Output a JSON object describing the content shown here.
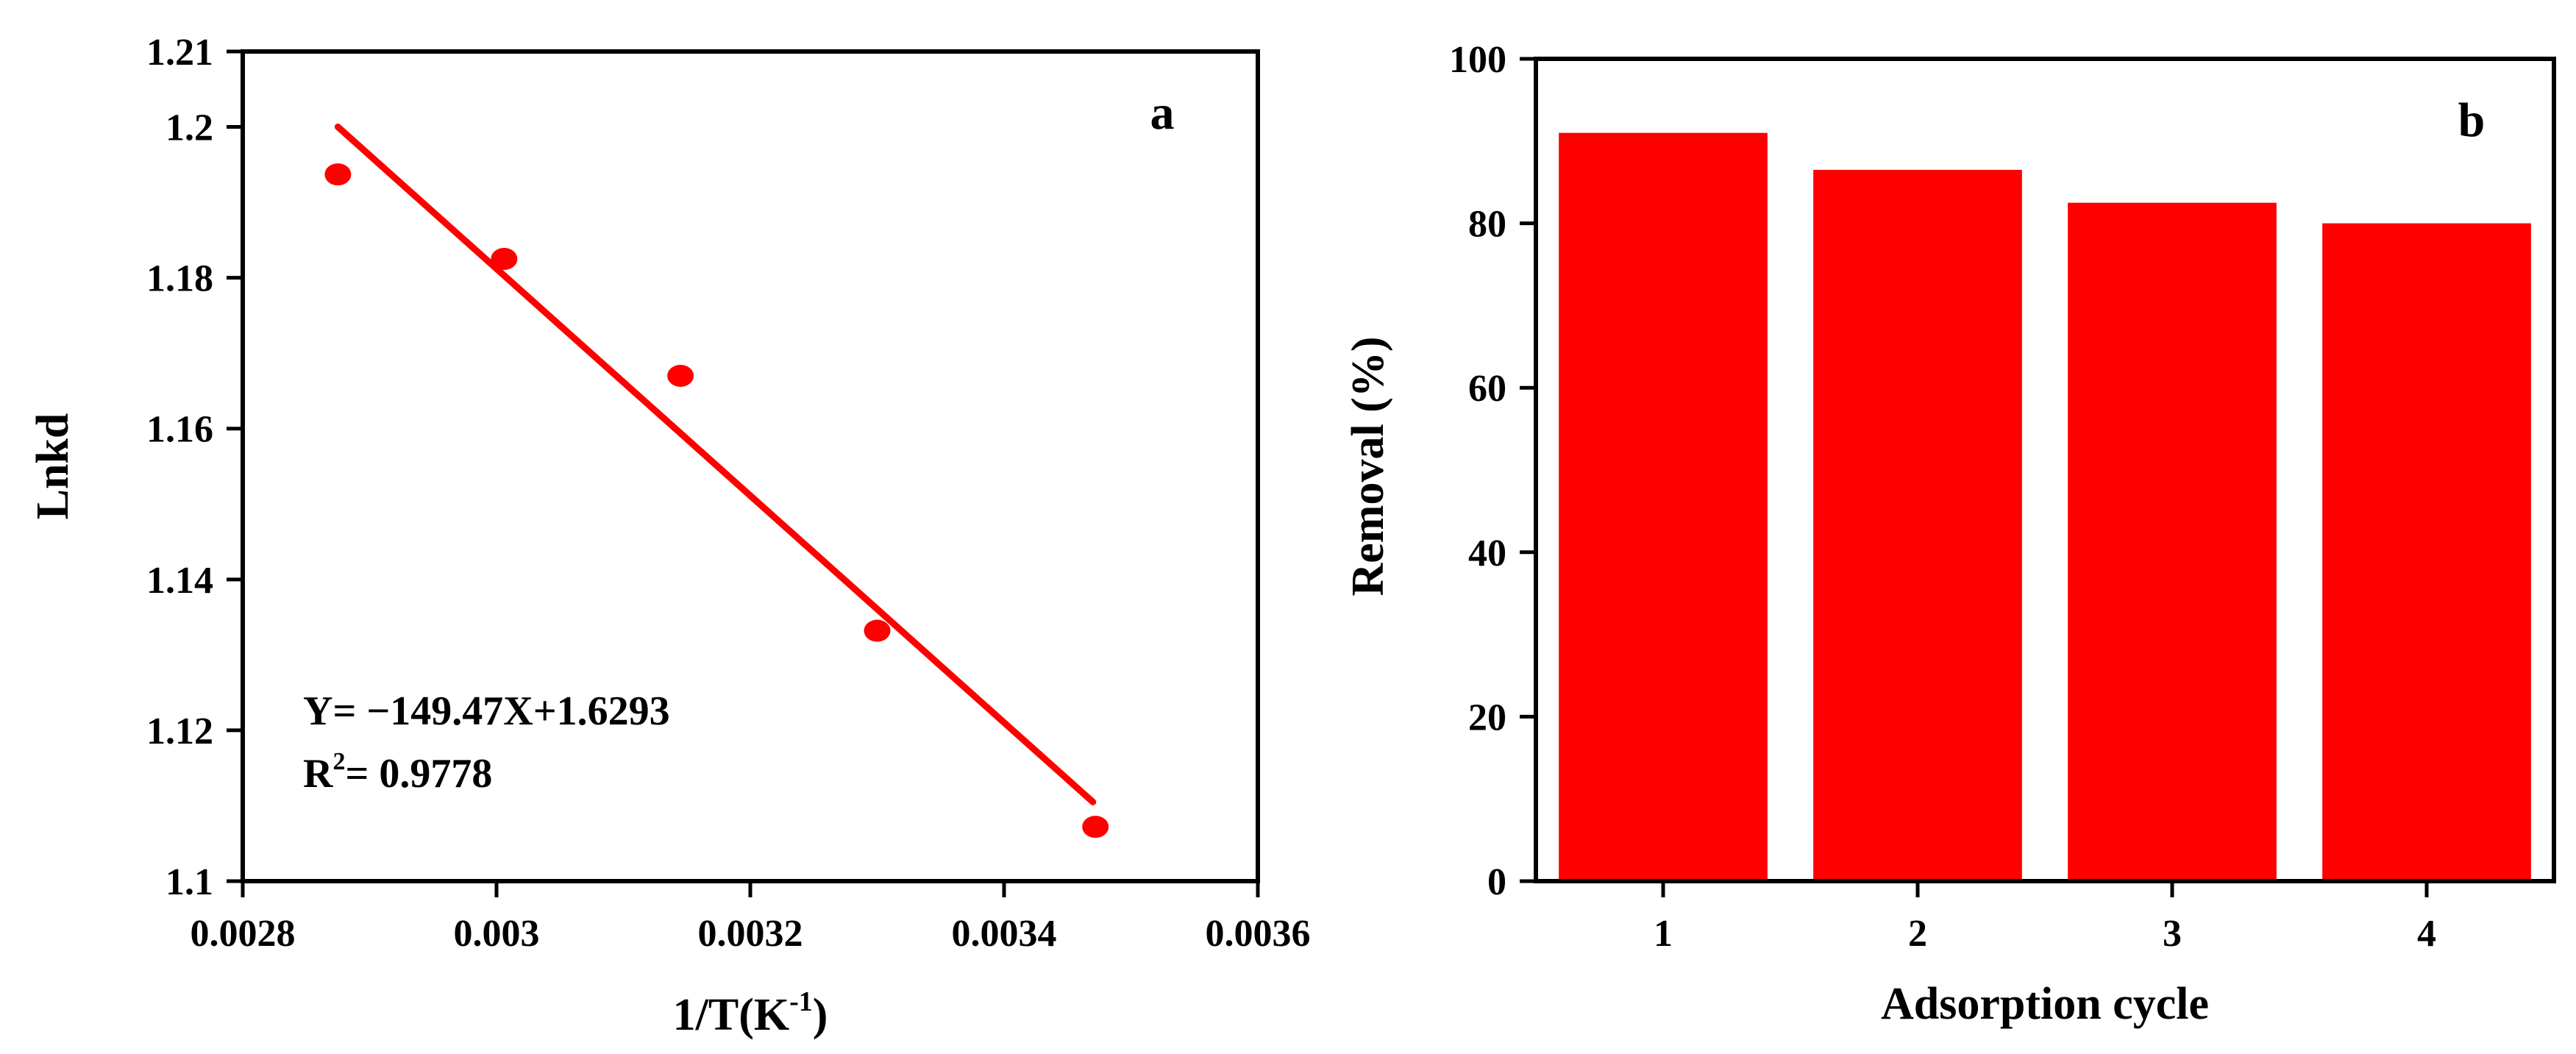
{
  "chart_data": [
    {
      "panel": "a",
      "type": "scatter",
      "xlabel": "1/T(K",
      "xlabel_sup": "-1",
      "xlabel_close": ")",
      "ylabel": "Lnkd",
      "xlim": [
        0.0028,
        0.0036
      ],
      "ylim": [
        1.1,
        1.21
      ],
      "x_ticks": [
        0.0028,
        0.003,
        0.0032,
        0.0034,
        0.0036
      ],
      "x_tick_labels": [
        "0.0028",
        "0.003",
        "0.0032",
        "0.0034",
        "0.0036"
      ],
      "y_ticks": [
        1.1,
        1.12,
        1.14,
        1.16,
        1.18,
        1.2,
        1.21
      ],
      "y_tick_labels": [
        "1.1",
        "1.12",
        "1.14",
        "1.16",
        "1.18",
        "1.2",
        "1.21"
      ],
      "points": [
        {
          "x": 0.002875,
          "y": 1.1937
        },
        {
          "x": 0.003006,
          "y": 1.1825
        },
        {
          "x": 0.003145,
          "y": 1.167
        },
        {
          "x": 0.0033,
          "y": 1.1332
        },
        {
          "x": 0.003472,
          "y": 1.1072
        }
      ],
      "fit_line": {
        "x_start": 0.002875,
        "y_start": 1.2,
        "x_end": 0.00347,
        "y_end": 1.1105
      },
      "color": "#ff0000",
      "annotation": {
        "equation": "Y= −149.47X+1.6293",
        "r2_prefix": "R",
        "r2_sup": "2",
        "r2_value": "= 0.9778"
      }
    },
    {
      "panel": "b",
      "type": "bar",
      "xlabel": "Adsorption cycle",
      "ylabel": "Removal (%)",
      "categories": [
        "1",
        "2",
        "3",
        "4"
      ],
      "values": [
        91,
        86.5,
        82.5,
        80
      ],
      "ylim": [
        0,
        100
      ],
      "y_ticks": [
        0,
        20,
        40,
        60,
        80,
        100
      ],
      "y_tick_labels": [
        "0",
        "20",
        "40",
        "60",
        "80",
        "100"
      ],
      "color": "#ff0000"
    }
  ]
}
